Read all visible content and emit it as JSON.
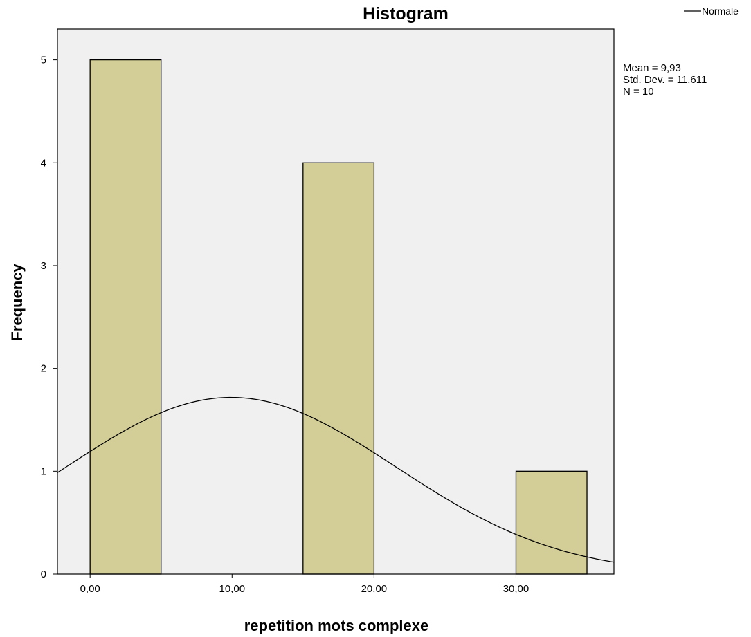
{
  "chart_data": {
    "type": "bar",
    "title": "Histogram",
    "xlabel": "repetition mots complexe",
    "ylabel": "Frequency",
    "bins": [
      {
        "start": 0,
        "end": 5,
        "count": 5
      },
      {
        "start": 15,
        "end": 20,
        "count": 4
      },
      {
        "start": 30,
        "end": 35,
        "count": 1
      }
    ],
    "x_ticks": [
      {
        "value": 0,
        "label": "0,00"
      },
      {
        "value": 10,
        "label": "10,00"
      },
      {
        "value": 20,
        "label": "20,00"
      },
      {
        "value": 30,
        "label": "30,00"
      }
    ],
    "y_ticks": [
      0,
      1,
      2,
      3,
      4,
      5
    ],
    "xlim": [
      -2.3,
      36.9
    ],
    "ylim": [
      0,
      5.3
    ],
    "normal_curve": {
      "mean": 9.93,
      "std": 11.611,
      "n": 10,
      "bin_width": 5
    },
    "legend": [
      {
        "name": "Normale",
        "type": "line",
        "color": "#000000"
      }
    ],
    "legend_position": "top-right",
    "stats": [
      "Mean = 9,93",
      "Std. Dev. = 11,611",
      "N = 10"
    ],
    "grid": false,
    "colors": {
      "bar": "#D3CE97",
      "plot_bg": "#F0F0F0",
      "border": "#000000"
    }
  }
}
